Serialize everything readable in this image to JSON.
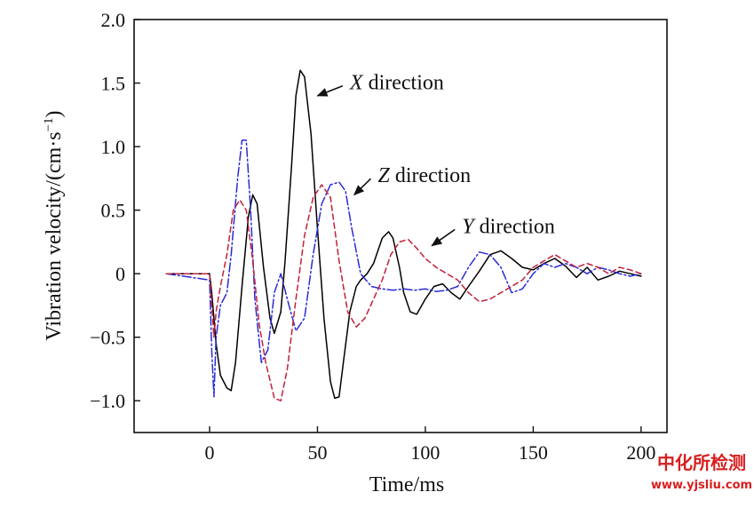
{
  "chart_data": {
    "type": "line",
    "title": "",
    "xlabel": "Time/ms",
    "ylabel": "Vibration velocity/(cm·s",
    "ylabel_sup": "−1",
    "ylabel_close": ")",
    "xlim": [
      -35,
      212
    ],
    "ylim": [
      -1.25,
      2.0
    ],
    "xticks": [
      0,
      50,
      100,
      150,
      200
    ],
    "yticks": [
      -1.0,
      -0.5,
      0,
      0.5,
      1.0,
      1.5,
      2.0
    ],
    "xtick_labels": [
      "0",
      "50",
      "100",
      "150",
      "200"
    ],
    "ytick_labels": [
      "−1.0",
      "−0.5",
      "0",
      "0.5",
      "1.0",
      "1.5",
      "2.0"
    ],
    "grid": false,
    "legend": "none",
    "series": [
      {
        "name": "X direction",
        "color": "#000000",
        "dash": "none",
        "x": [
          -20,
          0,
          1,
          3,
          5,
          8,
          10,
          12,
          15,
          18,
          20,
          22,
          25,
          28,
          30,
          33,
          35,
          38,
          40,
          42,
          44,
          47,
          50,
          53,
          56,
          58,
          60,
          62,
          65,
          68,
          70,
          73,
          76,
          80,
          83,
          85,
          88,
          90,
          93,
          96,
          100,
          104,
          108,
          112,
          116,
          120,
          125,
          130,
          135,
          140,
          145,
          150,
          155,
          160,
          165,
          170,
          175,
          180,
          185,
          190,
          195,
          200
        ],
        "y": [
          0,
          0,
          -0.15,
          -0.55,
          -0.8,
          -0.9,
          -0.92,
          -0.7,
          -0.1,
          0.45,
          0.62,
          0.55,
          0.05,
          -0.35,
          -0.47,
          -0.3,
          0.1,
          0.85,
          1.4,
          1.6,
          1.55,
          1.1,
          0.35,
          -0.35,
          -0.85,
          -0.98,
          -0.97,
          -0.7,
          -0.3,
          -0.1,
          -0.05,
          0.0,
          0.08,
          0.28,
          0.33,
          0.28,
          0.05,
          -0.15,
          -0.3,
          -0.32,
          -0.2,
          -0.1,
          -0.08,
          -0.15,
          -0.2,
          -0.1,
          0.02,
          0.15,
          0.18,
          0.12,
          0.05,
          0.03,
          0.08,
          0.12,
          0.06,
          -0.03,
          0.05,
          -0.05,
          -0.02,
          0.02,
          0,
          -0.02
        ]
      },
      {
        "name": "Z direction",
        "color": "#2a2ad6",
        "dash": "10,3,2,3",
        "x": [
          -20,
          0,
          1,
          2,
          3,
          5,
          8,
          10,
          13,
          15,
          17,
          19,
          21,
          24,
          27,
          30,
          33,
          36,
          40,
          44,
          48,
          52,
          56,
          60,
          63,
          66,
          70,
          75,
          80,
          85,
          90,
          95,
          100,
          105,
          110,
          115,
          120,
          125,
          130,
          135,
          140,
          145,
          150,
          155,
          160,
          165,
          170,
          175,
          180,
          185,
          190,
          195,
          200
        ],
        "y": [
          0,
          -0.05,
          -0.6,
          -0.97,
          -0.5,
          -0.25,
          -0.15,
          0.15,
          0.75,
          1.05,
          1.05,
          0.5,
          -0.2,
          -0.7,
          -0.6,
          -0.15,
          0.0,
          -0.2,
          -0.45,
          -0.35,
          0.15,
          0.55,
          0.7,
          0.72,
          0.65,
          0.35,
          0.0,
          -0.1,
          -0.12,
          -0.13,
          -0.12,
          -0.13,
          -0.12,
          -0.14,
          -0.13,
          -0.1,
          0.05,
          0.17,
          0.15,
          0.05,
          -0.15,
          -0.12,
          0.0,
          0.08,
          0.05,
          0.08,
          0.05,
          0.0,
          0.05,
          0.03,
          0.0,
          -0.02,
          0
        ]
      },
      {
        "name": "Y direction",
        "color": "#c0203a",
        "dash": "6,4",
        "x": [
          -20,
          0,
          1,
          2,
          3,
          5,
          8,
          11,
          14,
          17,
          20,
          23,
          26,
          30,
          33,
          36,
          40,
          44,
          48,
          52,
          56,
          60,
          64,
          68,
          72,
          76,
          80,
          84,
          88,
          92,
          96,
          100,
          105,
          110,
          115,
          120,
          125,
          130,
          135,
          140,
          145,
          150,
          155,
          160,
          165,
          170,
          175,
          180,
          185,
          190,
          195,
          200
        ],
        "y": [
          0,
          0,
          -0.25,
          -0.5,
          -0.3,
          -0.1,
          0.15,
          0.5,
          0.58,
          0.5,
          0.1,
          -0.4,
          -0.7,
          -0.98,
          -1.0,
          -0.75,
          -0.2,
          0.3,
          0.6,
          0.7,
          0.6,
          0.1,
          -0.3,
          -0.42,
          -0.35,
          -0.2,
          -0.05,
          0.15,
          0.25,
          0.27,
          0.2,
          0.12,
          0.05,
          0.0,
          -0.05,
          -0.15,
          -0.22,
          -0.2,
          -0.15,
          -0.1,
          -0.05,
          0.05,
          0.1,
          0.15,
          0.1,
          0.05,
          0.08,
          0.05,
          0.0,
          0.05,
          0.03,
          0
        ]
      }
    ],
    "annotations": [
      {
        "letter": "X",
        "text": " direction",
        "x": 65,
        "y": 1.45,
        "ax": 50,
        "ay": 1.4
      },
      {
        "letter": "Z",
        "text": " direction",
        "x": 78,
        "y": 0.72,
        "ax": 67,
        "ay": 0.62
      },
      {
        "letter": "Y",
        "text": " direction",
        "x": 117,
        "y": 0.32,
        "ax": 103,
        "ay": 0.22
      }
    ]
  },
  "watermark": {
    "title": "中化所检测",
    "url": "www.yjsliu.com",
    "color": "#d61f1f"
  }
}
